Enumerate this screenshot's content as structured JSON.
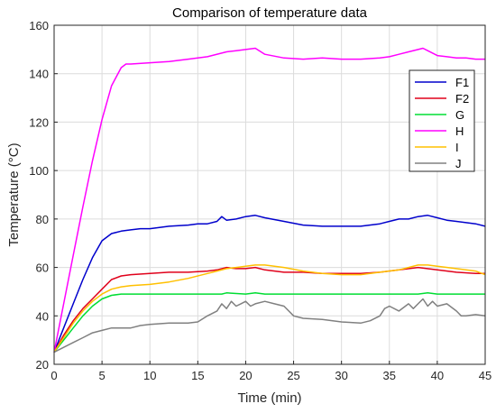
{
  "chart_data": {
    "type": "line",
    "title": "Comparison of temperature data",
    "xlabel": "Time (min)",
    "ylabel": "Temperature (°C)",
    "xlim": [
      0,
      45
    ],
    "ylim": [
      20,
      160
    ],
    "xticks": [
      0,
      5,
      10,
      15,
      20,
      25,
      30,
      35,
      40,
      45
    ],
    "yticks": [
      20,
      40,
      60,
      80,
      100,
      120,
      140,
      160
    ],
    "grid": true,
    "legend_position": "top-right",
    "series": [
      {
        "name": "F1",
        "color": "#0000cc",
        "x": [
          0,
          1,
          2,
          3,
          4,
          5,
          6,
          7,
          8,
          9,
          10,
          12,
          14,
          15,
          16,
          17,
          17.5,
          18,
          19,
          20,
          21,
          22,
          24,
          26,
          28,
          30,
          32,
          34,
          35,
          36,
          37,
          38,
          39,
          40,
          41,
          42,
          43,
          44,
          45
        ],
        "y": [
          25,
          35,
          45,
          55,
          64,
          71,
          74,
          75,
          75.5,
          76,
          76,
          77,
          77.5,
          78,
          78,
          79,
          81,
          79.5,
          80,
          81,
          81.5,
          80.5,
          79,
          77.5,
          77,
          77,
          77,
          78,
          79,
          80,
          80,
          81,
          81.5,
          80.5,
          79.5,
          79,
          78.5,
          78,
          77
        ]
      },
      {
        "name": "F2",
        "color": "#e0001a",
        "x": [
          0,
          1,
          2,
          3,
          4,
          5,
          6,
          7,
          8,
          10,
          12,
          14,
          16,
          17,
          18,
          19,
          20,
          21,
          22,
          24,
          26,
          28,
          30,
          32,
          34,
          36,
          38,
          40,
          42,
          44,
          45
        ],
        "y": [
          25,
          32,
          38,
          43,
          47,
          51,
          55,
          56.5,
          57,
          57.5,
          58,
          58,
          58.5,
          59,
          60,
          59.5,
          59.5,
          60,
          59,
          58,
          58,
          57.5,
          57.5,
          57.5,
          58,
          59,
          60,
          59,
          58,
          57.5,
          57.5
        ]
      },
      {
        "name": "G",
        "color": "#00dd33",
        "x": [
          0,
          1,
          2,
          3,
          4,
          5,
          6,
          7,
          10,
          15,
          17.5,
          18,
          20,
          21,
          22,
          25,
          30,
          35,
          38,
          39,
          40,
          45
        ],
        "y": [
          25,
          30,
          35,
          40,
          44,
          47,
          48.5,
          49,
          49,
          49,
          49,
          49.5,
          49,
          49.5,
          49,
          49,
          49,
          49,
          49,
          49.5,
          49,
          49
        ]
      },
      {
        "name": "H",
        "color": "#ff00ff",
        "x": [
          0,
          1,
          2,
          3,
          4,
          5,
          6,
          7,
          7.5,
          8,
          10,
          12,
          14,
          16,
          18,
          19,
          20,
          21,
          22,
          24,
          26,
          28,
          30,
          32,
          34,
          35,
          36,
          37,
          38,
          38.5,
          39,
          40,
          41,
          42,
          43,
          44,
          45
        ],
        "y": [
          25,
          45,
          65,
          85,
          104,
          121,
          135,
          142.5,
          144,
          144,
          144.5,
          145,
          146,
          147,
          149,
          149.5,
          150,
          150.5,
          148,
          146.5,
          146,
          146.5,
          146,
          146,
          146.5,
          147,
          148,
          149,
          150,
          150.5,
          149.5,
          147.5,
          147,
          146.5,
          146.5,
          146,
          146
        ]
      },
      {
        "name": "I",
        "color": "#ffc000",
        "x": [
          0,
          1,
          2,
          3,
          4,
          5,
          6,
          7,
          8,
          10,
          12,
          14,
          16,
          17,
          18,
          19,
          20,
          21,
          22,
          24,
          26,
          28,
          30,
          32,
          34,
          36,
          37,
          38,
          39,
          40,
          42,
          44,
          45
        ],
        "y": [
          25,
          31,
          37,
          42,
          46,
          49,
          51,
          52,
          52.5,
          53,
          54,
          55.5,
          57.5,
          58.5,
          59.5,
          60,
          60.5,
          61,
          61,
          60,
          58.5,
          57.5,
          57,
          57,
          58,
          59,
          60,
          61,
          61,
          60.5,
          59.5,
          58.5,
          57
        ]
      },
      {
        "name": "J",
        "color": "#808080",
        "x": [
          0,
          1,
          2,
          3,
          4,
          5,
          6,
          7,
          8,
          9,
          10,
          12,
          14,
          15,
          16,
          17,
          17.5,
          18,
          18.5,
          19,
          19.5,
          20,
          20.5,
          21,
          22,
          23,
          24,
          25,
          26,
          28,
          30,
          32,
          33,
          34,
          34.5,
          35,
          36,
          37,
          37.5,
          38,
          38.5,
          39,
          39.5,
          40,
          41,
          42,
          42.5,
          43,
          44,
          45
        ],
        "y": [
          25,
          27,
          29,
          31,
          33,
          34,
          35,
          35,
          35,
          36,
          36.5,
          37,
          37,
          37.5,
          40,
          42,
          45,
          43,
          46,
          44,
          45,
          46,
          44,
          45,
          46,
          45,
          44,
          40,
          39,
          38.5,
          37.5,
          37,
          38,
          40,
          43,
          44,
          42,
          45,
          43,
          45,
          47,
          44,
          46,
          44,
          45,
          42,
          40,
          40,
          40.5,
          40
        ]
      }
    ]
  }
}
